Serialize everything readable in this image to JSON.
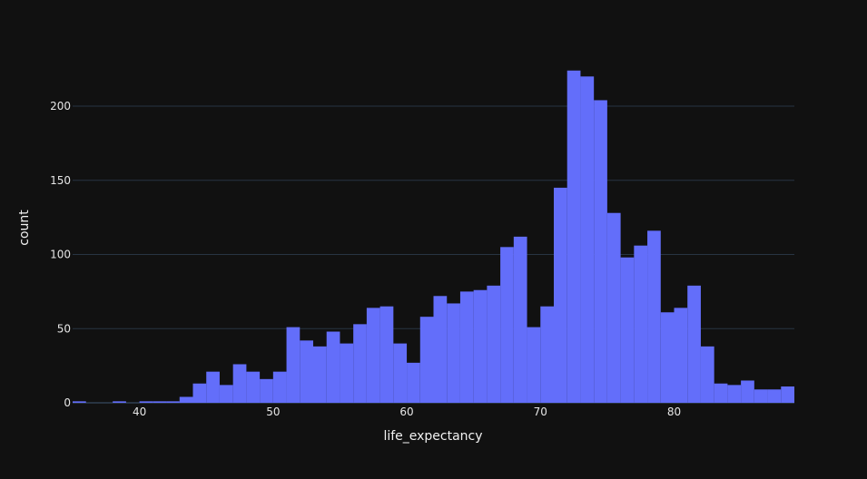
{
  "chart_data": {
    "type": "bar",
    "xlabel": "life_expectancy",
    "ylabel": "count",
    "bin_start": 35,
    "bin_width": 1,
    "xlim": [
      35,
      89
    ],
    "ylim": [
      0,
      235
    ],
    "x_ticks": [
      40,
      50,
      60,
      70,
      80
    ],
    "y_ticks": [
      0,
      50,
      100,
      150,
      200
    ],
    "grid": true,
    "bar_color": "#636efa",
    "background_color": "#111111",
    "values": [
      1,
      0,
      0,
      1,
      0,
      1,
      1,
      1,
      4,
      13,
      21,
      12,
      26,
      21,
      16,
      21,
      51,
      42,
      38,
      48,
      40,
      53,
      64,
      65,
      40,
      27,
      58,
      72,
      67,
      75,
      76,
      79,
      105,
      112,
      51,
      65,
      145,
      224,
      220,
      204,
      128,
      98,
      106,
      116,
      61,
      64,
      79,
      38,
      13,
      12,
      15,
      9,
      9,
      11
    ]
  }
}
